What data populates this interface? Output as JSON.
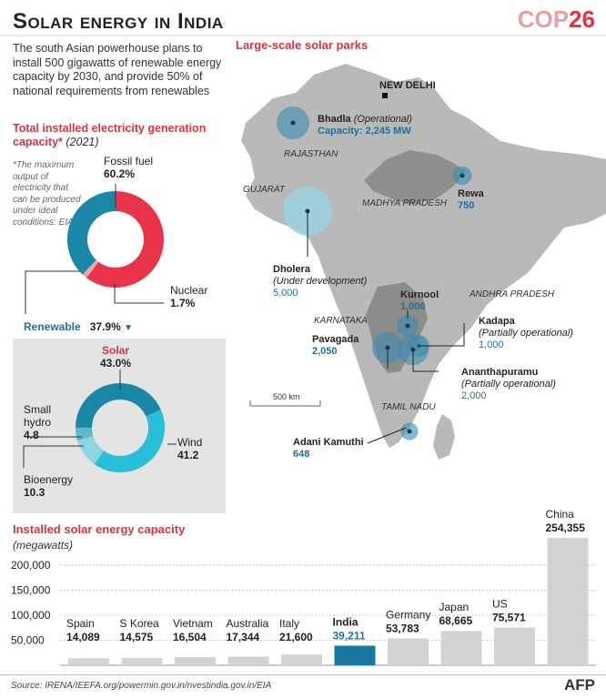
{
  "header": {
    "title": "Solar energy in India",
    "cop_prefix": "COP",
    "cop_number": "26"
  },
  "intro": "The south Asian powerhouse plans to install 500 gigawatts of renewable energy capacity by 2030, and provide 50% of national requirements from renewables",
  "capacity": {
    "title": "Total installed electricity generation capacity*",
    "year": "(2021)",
    "footnote": "*The maximum output of electricity that can be produced under ideal conditions: EIA"
  },
  "map": {
    "title": "Large-scale solar parks",
    "capital": "NEW DELHI",
    "states": [
      "RAJASTHAN",
      "GUJARAT",
      "MADHYA PRADESH",
      "ANDHRA PRADESH",
      "KARNATAKA",
      "TAMIL NADU"
    ],
    "scale": "500 km",
    "parks": [
      {
        "name": "Bhadla",
        "status": "(Operational)",
        "capacity_label": "Capacity: 2,245 MW",
        "mw": 2245
      },
      {
        "name": "Rewa",
        "status": "",
        "capacity_label": "750",
        "mw": 750
      },
      {
        "name": "Dholera",
        "status": "(Under development)",
        "capacity_label": "5,000",
        "mw": 5000
      },
      {
        "name": "Kurnool",
        "status": "",
        "capacity_label": "1,000",
        "mw": 1000
      },
      {
        "name": "Kadapa",
        "status": "(Partially operational)",
        "capacity_label": "1,000",
        "mw": 1000
      },
      {
        "name": "Pavagada",
        "status": "",
        "capacity_label": "2,050",
        "mw": 2050
      },
      {
        "name": "Ananthapuramu",
        "status": "(Partially operational)",
        "capacity_label": "2,000",
        "mw": 2000
      },
      {
        "name": "Adani Kamuthi",
        "status": "",
        "capacity_label": "648",
        "mw": 648
      }
    ]
  },
  "chart_data": [
    {
      "type": "pie",
      "title": "Total installed electricity generation capacity* (2021)",
      "categories": [
        "Fossil fuel",
        "Nuclear",
        "Renewable"
      ],
      "values": [
        60.2,
        1.7,
        37.9
      ],
      "value_labels": [
        "60.2%",
        "1.7%",
        "37.9%"
      ],
      "colors": [
        "#e8334a",
        "#f2a6a8",
        "#1b87a6"
      ]
    },
    {
      "type": "pie",
      "title": "",
      "categories": [
        "Solar",
        "Wind",
        "Bioenergy",
        "Small hydro"
      ],
      "values": [
        43.0,
        41.2,
        10.3,
        4.8
      ],
      "value_labels": [
        "43.0%",
        "41.2",
        "10.3",
        "4.8"
      ],
      "colors": [
        "#1b87a6",
        "#28c0d8",
        "#8fd6e0",
        "#5fb7c7"
      ]
    },
    {
      "type": "bar",
      "title": "Installed solar energy capacity",
      "ylabel": "(megawatts)",
      "categories": [
        "Spain",
        "S Korea",
        "Vietnam",
        "Australia",
        "Italy",
        "India",
        "Germany",
        "Japan",
        "US",
        "China"
      ],
      "values": [
        14089,
        14575,
        16504,
        17344,
        21600,
        39211,
        53783,
        68665,
        75571,
        254355
      ],
      "value_labels": [
        "14,089",
        "14,575",
        "16,504",
        "17,344",
        "21,600",
        "39,211",
        "53,783",
        "68,665",
        "75,571",
        "254,355"
      ],
      "highlight": "India",
      "yticks": [
        "50,000",
        "100,000",
        "150,000",
        "200,000"
      ],
      "ytick_values": [
        50000,
        100000,
        150000,
        200000
      ],
      "ylim": [
        0,
        254355
      ],
      "grid": true,
      "colors": {
        "bar": "#d3d3d3",
        "highlight": "#1a78a0"
      }
    }
  ],
  "footer": {
    "source": "Source: IRENA/IEEFA.org/powermin.gov.in/nvestindia.gov.in/EIA",
    "agency": "AFP"
  }
}
